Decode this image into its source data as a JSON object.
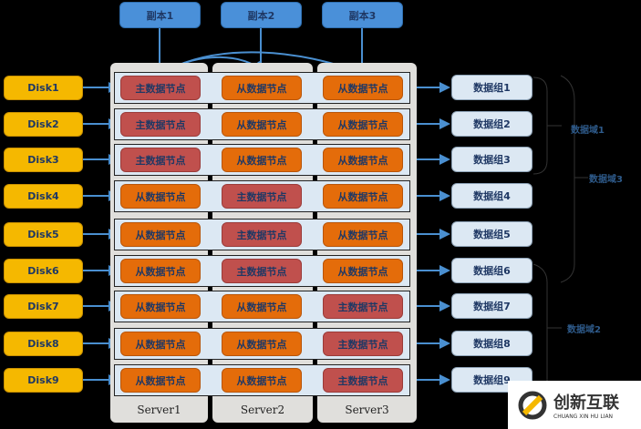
{
  "replicas": [
    "副本1",
    "副本2",
    "副本3"
  ],
  "servers": [
    "Server1",
    "Server2",
    "Server3"
  ],
  "disks": [
    "Disk1",
    "Disk2",
    "Disk3",
    "Disk4",
    "Disk5",
    "Disk6",
    "Disk7",
    "Disk8",
    "Disk9"
  ],
  "node_labels": {
    "master": "主数据节点",
    "slave": "从数据节点"
  },
  "rows": [
    {
      "master_col": 0
    },
    {
      "master_col": 0
    },
    {
      "master_col": 0
    },
    {
      "master_col": 1
    },
    {
      "master_col": 1
    },
    {
      "master_col": 1
    },
    {
      "master_col": 2
    },
    {
      "master_col": 2
    },
    {
      "master_col": 2
    }
  ],
  "groups": [
    "数据组1",
    "数据组2",
    "数据组3",
    "数据组4",
    "数据组5",
    "数据组6",
    "数据组7",
    "数据组8",
    "数据组9"
  ],
  "domains": [
    "数据域1",
    "数据域2",
    "数据域3"
  ],
  "colors": {
    "master": "#c0504d",
    "slave": "#e46c0a",
    "disk": "#f5b800",
    "replica": "#4a90d9",
    "arrow": "#4a8fd0"
  },
  "logo": {
    "name": "创新互联",
    "sub": "CHUANG XIN HU LIAN"
  }
}
